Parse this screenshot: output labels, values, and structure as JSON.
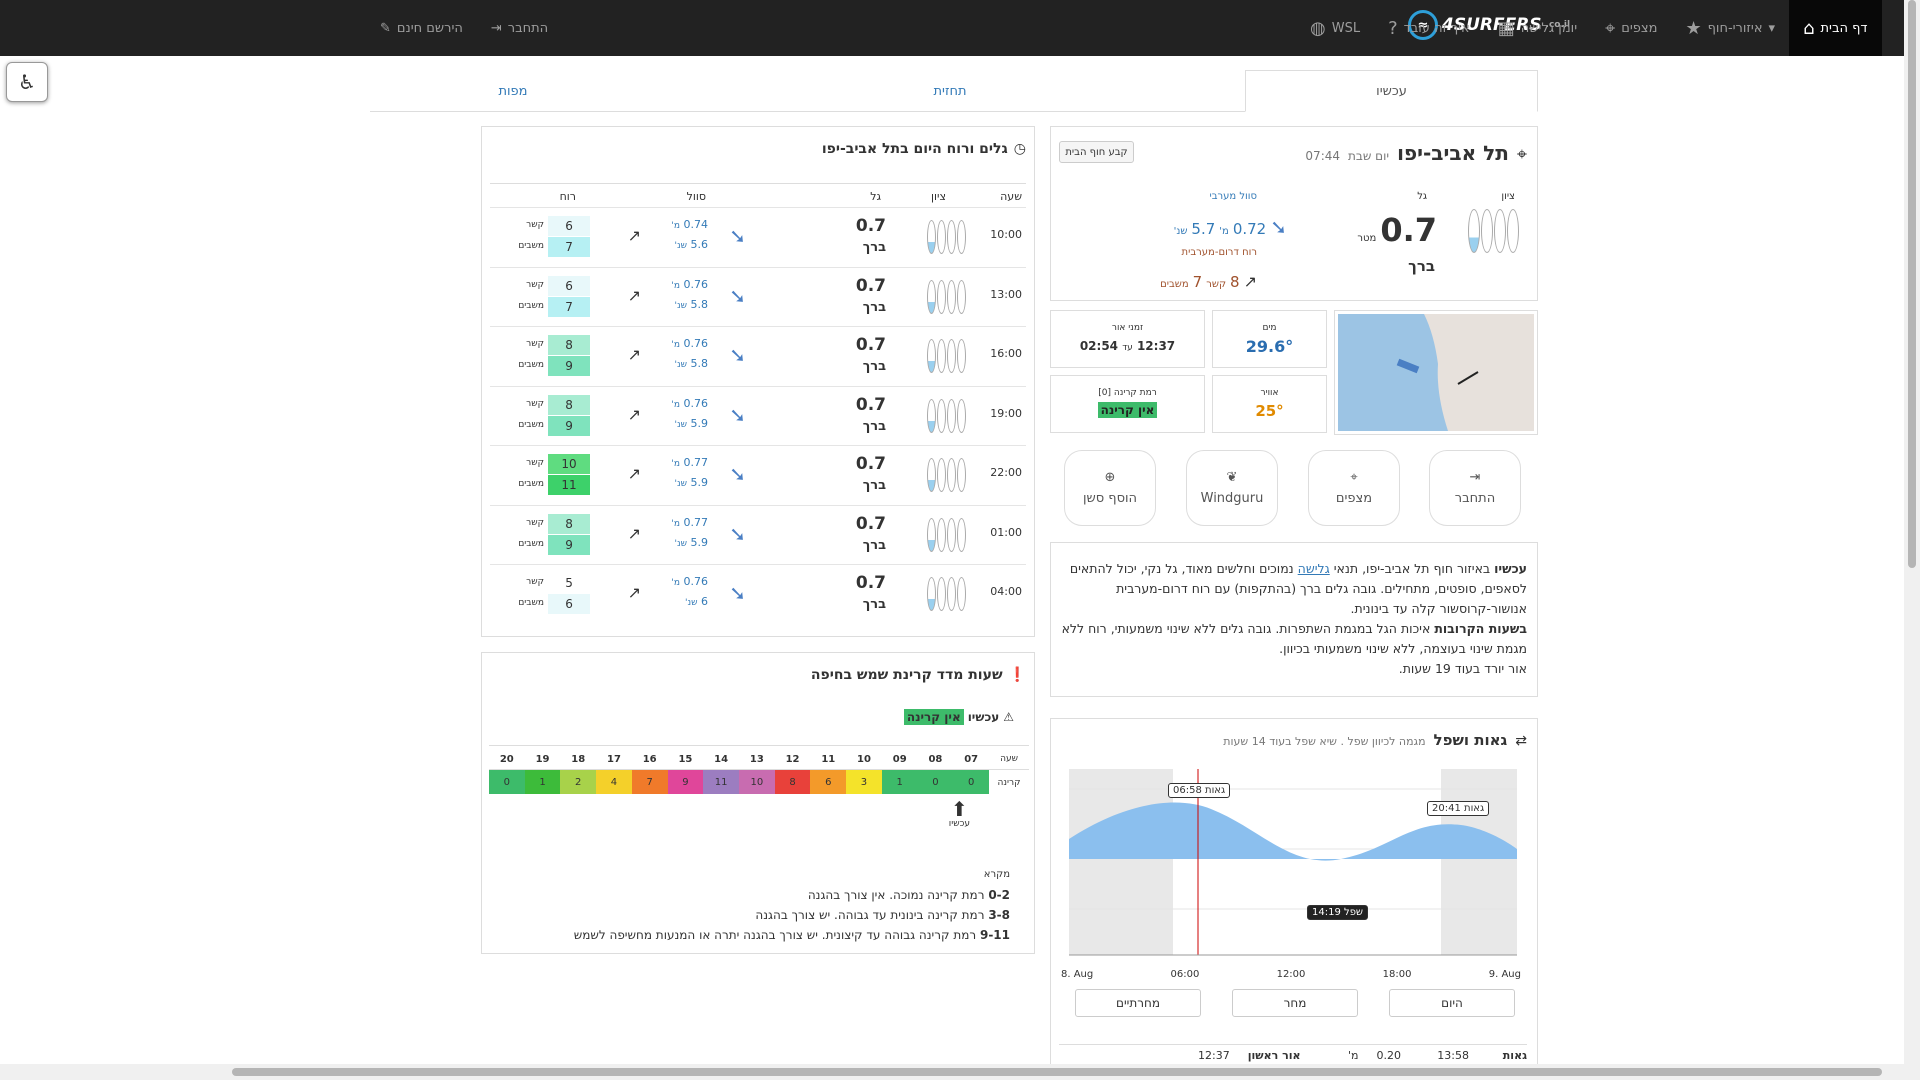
{
  "nav": {
    "home": "דף הבית",
    "regions": "איזורי-חוף",
    "spots": "מצפים",
    "sessions": "יומן גלישה",
    "how": "איך זה עובד",
    "wsl": "WSL",
    "login": "התחבר",
    "register": "הירשם חינם",
    "brand": "4SURFERS",
    "brand_suffix": ".co.il"
  },
  "tabs": [
    "עכשיו",
    "תחזית",
    "מפות"
  ],
  "spot": {
    "name": "תל אביב-יפו",
    "day": "יום שבת",
    "time": "07:44",
    "set_home": "קבע חוף הבית",
    "col_rating": "ציון",
    "col_wave": "גל",
    "col_swell": "סוול מערבי",
    "wave_val": "0.7",
    "wave_unit": "מטר",
    "wave_desc": "ברך",
    "swell_h": "0.72",
    "swell_h_unit": "מ'",
    "swell_p": "5.7",
    "swell_p_unit": "שנ'",
    "wind_dir": "רוח דרום-מערבית",
    "wind_kn": "8",
    "wind_kn_unit": "קשר",
    "wind_gust": "7",
    "wind_gust_unit": "משבים"
  },
  "info": {
    "daylight_label": "זמני אור",
    "daylight_from": "12:37",
    "daylight_sep": "עד",
    "daylight_to": "02:54",
    "water_label": "מים",
    "water": "29.6°",
    "uv_label": "רמת קרינה [0]",
    "uv_val": "אין קרינה",
    "air_label": "אוויר",
    "air": "25°"
  },
  "actions": [
    {
      "label": "התחבר",
      "icon": "⇥"
    },
    {
      "label": "מצפים",
      "icon": "⌖"
    },
    {
      "label": "Windguru",
      "icon": "❦"
    },
    {
      "label": "הוסף סשן",
      "icon": "⊕"
    }
  ],
  "summary": {
    "now_label": "עכשיו",
    "now": "באיזור חוף תל אביב-יפו, תנאי",
    "link": "גלישה",
    "now2": "נמוכים וחלשים מאוד, גל נקי, יכול להתאים לסאפים, סופטים, מתחילים. גובה גלים ברך (בהתקפות) עם רוח דרום-מערבית אנושור-קרוסשור קלה עד בינונית.",
    "next_label": "בשעות הקרובות",
    "next": "איכות הגל במגמת השתפרות. גובה גלים ללא שינוי משמעותי, רוח ללא מגמת שינוי בעוצמה, ללא שינוי משמעותי בכיוון.",
    "light": "אור יורד בעוד 19 שעות."
  },
  "tides": {
    "title": "גאות ושפל",
    "subtitle": "מגמה לכיוון שפל . שיא שפל בעוד 14 שעות",
    "high1": "גאות 06:58",
    "low1": "שפל 14:19",
    "high2": "גאות 20:41",
    "xlabels": [
      "8. Aug",
      "06:00",
      "12:00",
      "18:00",
      "9. Aug"
    ],
    "btn_today": "היום",
    "btn_tomorrow": "מחר",
    "btn_after": "מחרתיים",
    "row": {
      "type": "גאות",
      "time": "13:58",
      "h": "0.20",
      "unit": "מ'",
      "light": "אור ראשון",
      "lt": "12:37"
    }
  },
  "forecast": {
    "title": "גלים ורוח היום בתל אביב-יפו",
    "h_hour": "שעה",
    "h_rating": "ציון",
    "h_wave": "גל",
    "h_swell": "סוול",
    "h_wind": "רוח",
    "wave_desc": "ברך",
    "m": "מ'",
    "s": "שנ'",
    "kn": "קשר",
    "gust": "משבים",
    "rows": [
      {
        "hour": "10:00",
        "wave": "0.7",
        "sh": "0.74",
        "sp": "5.6",
        "kn": "6",
        "g": "7",
        "wc": "#e8f8fa",
        "gc": "#b6f0f3"
      },
      {
        "hour": "13:00",
        "wave": "0.7",
        "sh": "0.76",
        "sp": "5.8",
        "kn": "6",
        "g": "7",
        "wc": "#e8f8fa",
        "gc": "#b6f0f3"
      },
      {
        "hour": "16:00",
        "wave": "0.7",
        "sh": "0.76",
        "sp": "5.8",
        "kn": "8",
        "g": "9",
        "wc": "#a8ecd2",
        "gc": "#7fe3bd"
      },
      {
        "hour": "19:00",
        "wave": "0.7",
        "sh": "0.76",
        "sp": "5.9",
        "kn": "8",
        "g": "9",
        "wc": "#a8ecd2",
        "gc": "#7fe3bd"
      },
      {
        "hour": "22:00",
        "wave": "0.7",
        "sh": "0.77",
        "sp": "5.9",
        "kn": "10",
        "g": "11",
        "wc": "#5fdc80",
        "gc": "#3dd16a"
      },
      {
        "hour": "01:00",
        "wave": "0.7",
        "sh": "0.77",
        "sp": "5.9",
        "kn": "8",
        "g": "9",
        "wc": "#a8ecd2",
        "gc": "#7fe3bd"
      },
      {
        "hour": "04:00",
        "wave": "0.7",
        "sh": "0.76",
        "sp": "6",
        "kn": "5",
        "g": "6",
        "wc": "#fff",
        "gc": "#e8f8fa"
      }
    ]
  },
  "uv": {
    "title": "שעות מדד קרינת שמש בחיפה",
    "now_label": "עכשיו",
    "now_val": "אין קרינה",
    "h_hour": "שעה",
    "h_uv": "קרינה",
    "now_marker": "עכשיו",
    "hours": [
      "07",
      "08",
      "09",
      "10",
      "11",
      "12",
      "13",
      "14",
      "15",
      "16",
      "17",
      "18",
      "19",
      "20"
    ],
    "values": [
      "0",
      "0",
      "1",
      "3",
      "6",
      "8",
      "10",
      "11",
      "9",
      "7",
      "4",
      "2",
      "1",
      "0"
    ],
    "colors": [
      "#3dbb6a",
      "#3dbb6a",
      "#3dbb6a",
      "#f4e32a",
      "#f39a2a",
      "#e8413a",
      "#c86cb0",
      "#9c7dc0",
      "#e0469a",
      "#f07a2a",
      "#f4d02a",
      "#a8d24a",
      "#3dbb3a",
      "#3dbb6a"
    ],
    "legend_title": "מקרא",
    "legend": [
      {
        "range": "0-2",
        "text": "רמת קרינה נמוכה. אין צורך בהגנה"
      },
      {
        "range": "3-8",
        "text": "רמת קרינה בינונית עד גבוהה. יש צורך בהגנה"
      },
      {
        "range": "9-11",
        "text": "רמת קרינה גבוהה עד קיצונית. יש צורך בהגנה יתרה או המנעות מחשיפה לשמש"
      }
    ]
  }
}
